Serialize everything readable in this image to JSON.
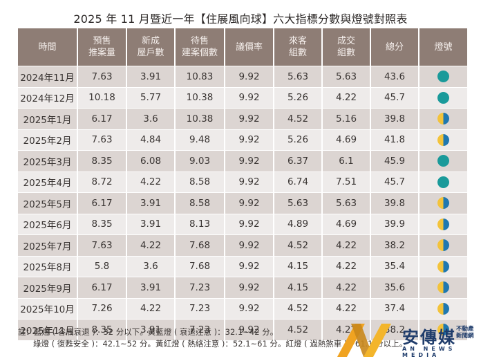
{
  "title": "2025 年 11 月暨近一年【住展風向球】六大指標分數與燈號對照表",
  "table": {
    "headers": [
      {
        "line1": "時間",
        "line2": ""
      },
      {
        "line1": "預售",
        "line2": "推案量"
      },
      {
        "line1": "新成",
        "line2": "屋戶數"
      },
      {
        "line1": "待售",
        "line2": "建案個數"
      },
      {
        "line1": "議價率",
        "line2": ""
      },
      {
        "line1": "來客",
        "line2": "組數"
      },
      {
        "line1": "成交",
        "line2": "組數"
      },
      {
        "line1": "總分",
        "line2": ""
      },
      {
        "line1": "燈號",
        "line2": ""
      }
    ],
    "rows": [
      {
        "time": "2024年11月",
        "presale": "7.63",
        "new_homes": "3.91",
        "unsold": "10.83",
        "bargain": "9.92",
        "visitors": "5.63",
        "deals": "5.63",
        "total": "43.6",
        "lamp": "green"
      },
      {
        "time": "2024年12月",
        "presale": "10.18",
        "new_homes": "5.77",
        "unsold": "10.38",
        "bargain": "9.92",
        "visitors": "5.26",
        "deals": "4.22",
        "total": "45.7",
        "lamp": "green"
      },
      {
        "time": "2025年1月",
        "presale": "6.17",
        "new_homes": "3.6",
        "unsold": "10.38",
        "bargain": "9.92",
        "visitors": "4.52",
        "deals": "5.16",
        "total": "39.8",
        "lamp": "yellow-blue"
      },
      {
        "time": "2025年2月",
        "presale": "7.63",
        "new_homes": "4.84",
        "unsold": "9.48",
        "bargain": "9.92",
        "visitors": "5.26",
        "deals": "4.69",
        "total": "41.8",
        "lamp": "yellow-blue"
      },
      {
        "time": "2025年3月",
        "presale": "8.35",
        "new_homes": "6.08",
        "unsold": "9.03",
        "bargain": "9.92",
        "visitors": "6.37",
        "deals": "6.1",
        "total": "45.9",
        "lamp": "green"
      },
      {
        "time": "2025年4月",
        "presale": "8.72",
        "new_homes": "4.22",
        "unsold": "8.58",
        "bargain": "9.92",
        "visitors": "6.74",
        "deals": "7.51",
        "total": "45.7",
        "lamp": "green"
      },
      {
        "time": "2025年5月",
        "presale": "6.17",
        "new_homes": "3.91",
        "unsold": "8.58",
        "bargain": "9.92",
        "visitors": "5.63",
        "deals": "5.63",
        "total": "39.8",
        "lamp": "yellow-blue"
      },
      {
        "time": "2025年6月",
        "presale": "8.35",
        "new_homes": "3.91",
        "unsold": "8.13",
        "bargain": "9.92",
        "visitors": "4.89",
        "deals": "4.69",
        "total": "39.9",
        "lamp": "yellow-blue"
      },
      {
        "time": "2025年7月",
        "presale": "7.63",
        "new_homes": "4.22",
        "unsold": "7.68",
        "bargain": "9.92",
        "visitors": "4.52",
        "deals": "4.22",
        "total": "38.2",
        "lamp": "yellow-blue"
      },
      {
        "time": "2025年8月",
        "presale": "5.8",
        "new_homes": "3.6",
        "unsold": "7.68",
        "bargain": "9.92",
        "visitors": "4.15",
        "deals": "4.22",
        "total": "35.4",
        "lamp": "yellow-blue"
      },
      {
        "time": "2025年9月",
        "presale": "6.17",
        "new_homes": "3.91",
        "unsold": "7.23",
        "bargain": "9.92",
        "visitors": "4.15",
        "deals": "4.22",
        "total": "35.6",
        "lamp": "yellow-blue"
      },
      {
        "time": "2025年10月",
        "presale": "7.26",
        "new_homes": "4.22",
        "unsold": "7.23",
        "bargain": "9.92",
        "visitors": "4.52",
        "deals": "4.22",
        "total": "37.4",
        "lamp": "yellow-blue"
      },
      {
        "time": "2025年11月",
        "presale": "8.35",
        "new_homes": "3.91",
        "unsold": "7.23",
        "bargain": "9.92",
        "visitors": "4.52",
        "deals": "4.22",
        "total": "38.2",
        "lamp": "yellow-blue"
      }
    ]
  },
  "lamp_colors": {
    "green": "#1a9a9a",
    "yellow": "#f3c33b",
    "blue": "#1f78b0"
  },
  "notes": {
    "line1": "註：藍燈 ( 谷底衰退 )：32 分以下。黃藍燈 ( 衰退注意 )：32.1~42 分。",
    "line2": "綠燈 ( 復甦安全 )：42.1~52 分。黃紅燈 ( 熱絡注意 )：52.1~61 分。紅燈 ( 過熱煞車 )：61.1 分以上。"
  },
  "logo": {
    "name_cn": "安傳媒",
    "sub_line1": "不動產",
    "sub_line2": "新聞網",
    "name_en": "AN NEWS MEDIA"
  }
}
